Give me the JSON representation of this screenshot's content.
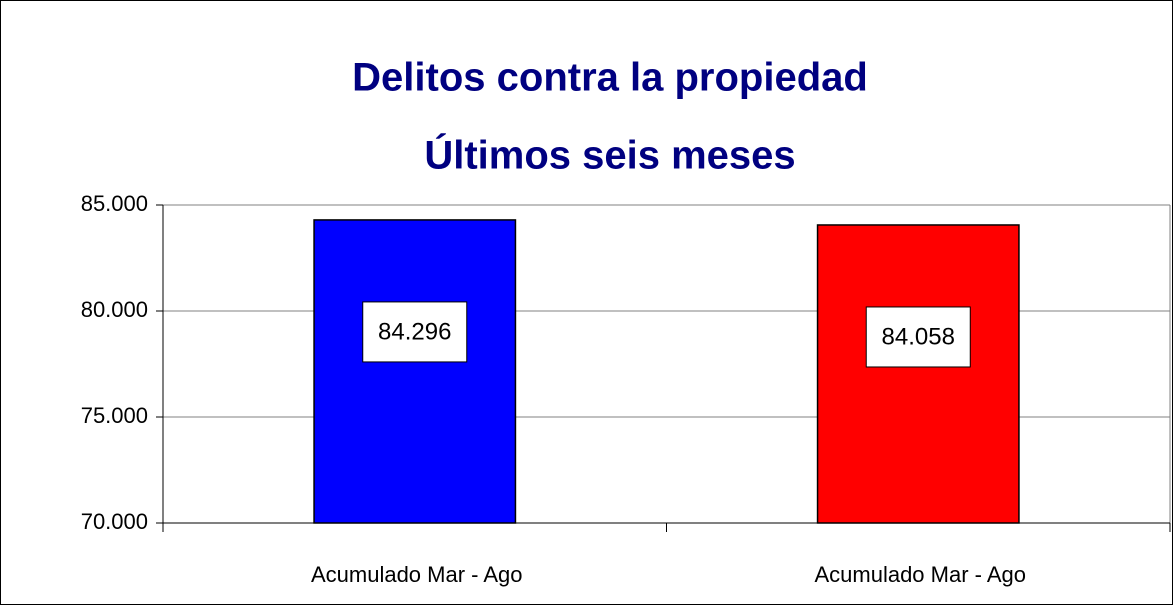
{
  "chart_data": {
    "type": "bar",
    "title": [
      "Delitos contra la propiedad",
      "Últimos seis meses"
    ],
    "categories": [
      "Acumulado Mar - Ago",
      "Acumulado Mar - Ago"
    ],
    "values": [
      84296,
      84058
    ],
    "value_labels": [
      "84.296",
      "84.058"
    ],
    "colors": [
      "#0000ff",
      "#ff0000"
    ],
    "ylim": [
      70000,
      85000
    ],
    "yticks": [
      {
        "value": 70000,
        "label": "70.000"
      },
      {
        "value": 75000,
        "label": "75.000"
      },
      {
        "value": 80000,
        "label": "80.000"
      },
      {
        "value": 85000,
        "label": "85.000"
      }
    ],
    "grid": true
  }
}
